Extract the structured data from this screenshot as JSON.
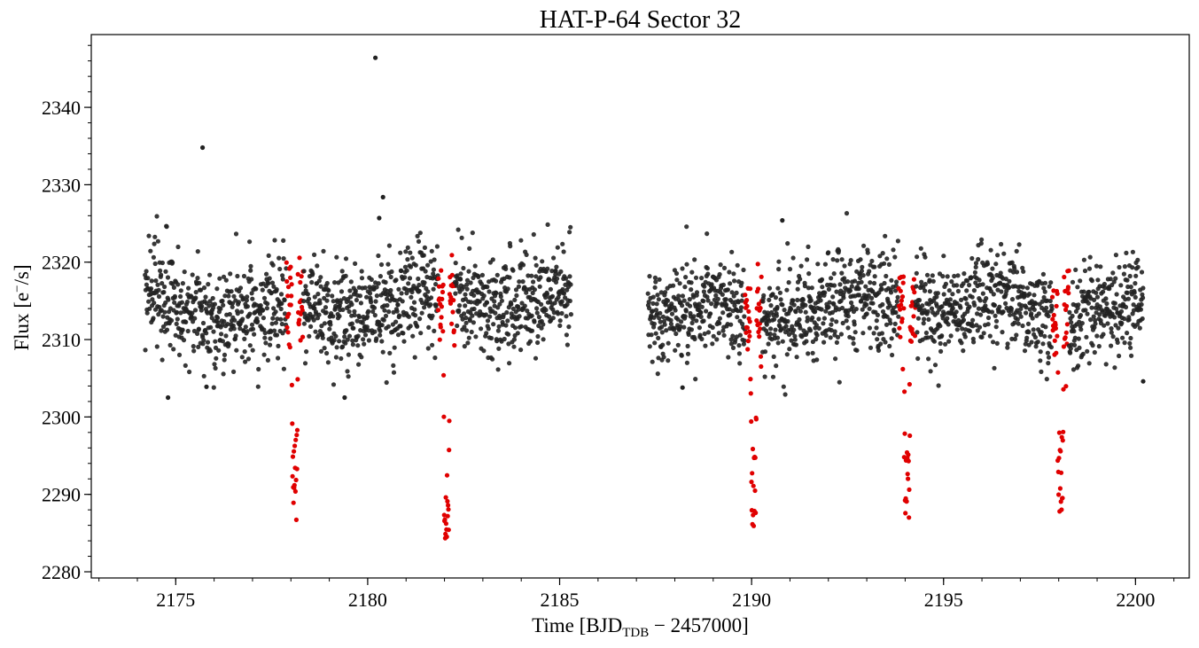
{
  "chart_data": {
    "type": "scatter",
    "title": "HAT-P-64 Sector 32",
    "xlabel": {
      "prefix": "Time [BJD",
      "subscript": "TDB",
      "suffix": " − 2457000]"
    },
    "ylabel": {
      "prefix": "Flux [e",
      "superscript": "−",
      "suffix": "/s]"
    },
    "xlim": [
      2172.8,
      2201.4
    ],
    "ylim": [
      2279.2,
      2349.4
    ],
    "x_ticks": [
      2175,
      2180,
      2185,
      2190,
      2195,
      2200
    ],
    "y_ticks": [
      2280,
      2290,
      2300,
      2310,
      2320,
      2330,
      2340
    ],
    "x_minor_step": 1,
    "y_minor_step": 2,
    "grid": false,
    "colors": {
      "baseline": "#222222",
      "transit": "#e00000",
      "axes": "#000000"
    },
    "series": [
      {
        "role": "out-of-transit",
        "color": "#222222",
        "segments": [
          {
            "x_range": [
              2174.2,
              2185.3
            ],
            "flux_mean": 2314.5,
            "flux_scatter": 3.2
          },
          {
            "x_range": [
              2187.3,
              2200.2
            ],
            "flux_mean": 2314.0,
            "flux_scatter": 3.2
          }
        ],
        "notable_points": [
          {
            "x": 2175.7,
            "y": 2334.8
          },
          {
            "x": 2180.2,
            "y": 2346.4
          },
          {
            "x": 2180.4,
            "y": 2328.4
          },
          {
            "x": 2180.3,
            "y": 2325.7
          },
          {
            "x": 2174.8,
            "y": 2302.5
          },
          {
            "x": 2179.4,
            "y": 2302.5
          },
          {
            "x": 2175.8,
            "y": 2303.9
          },
          {
            "x": 2188.2,
            "y": 2303.8
          },
          {
            "x": 2190.8,
            "y": 2325.4
          },
          {
            "x": 2200.2,
            "y": 2304.6
          }
        ]
      },
      {
        "role": "in-transit",
        "color": "#e00000",
        "transits": [
          {
            "center": 2178.1,
            "bottom_flux": 2287.5
          },
          {
            "center": 2182.05,
            "bottom_flux": 2282.3
          },
          {
            "center": 2190.05,
            "bottom_flux": 2285.8
          },
          {
            "center": 2194.05,
            "bottom_flux": 2286.3
          },
          {
            "center": 2198.05,
            "bottom_flux": 2288.0
          }
        ]
      }
    ]
  }
}
